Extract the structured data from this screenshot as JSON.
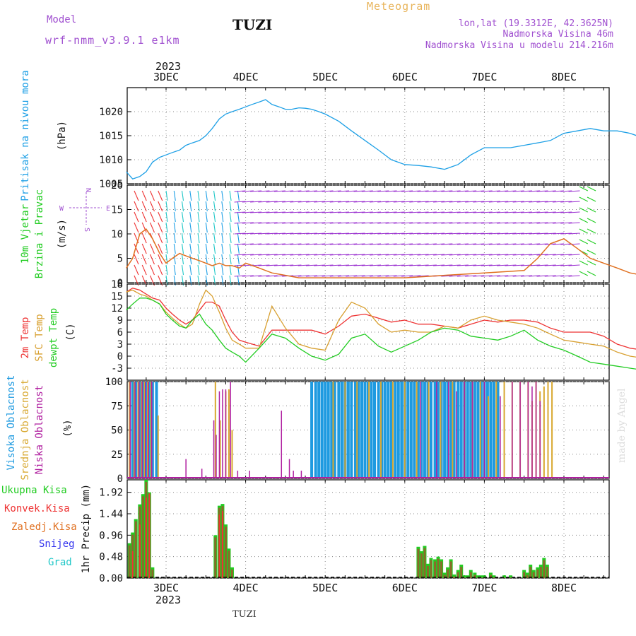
{
  "header": {
    "model_label": "Model",
    "model_value": "wrf-nmm_v3.9.1 e1km",
    "station": "TUZI",
    "product": "Meteogram",
    "lonlat": "lon,lat (19.3312E, 42.3625N)",
    "altitude": "Nadmorska Visina 46m",
    "model_altitude": "Nadmorska Visina u modelu 214.216m",
    "credit": "made by Angel",
    "footer_station": "TUZI"
  },
  "colors": {
    "purple": "#a050d0",
    "gold": "#e8b45a",
    "pressure": "#1ea0e6",
    "green": "#22cc22",
    "red": "#ee3333",
    "orange": "#e07020",
    "blue": "#3333ee",
    "cyan": "#22c8c8",
    "sfc": "#d8a030",
    "high_cloud": "#1e9ae0",
    "mid_cloud": "#d8a830",
    "low_cloud": "#b020a0",
    "precip_brown": "#8a6a2a"
  },
  "axis": {
    "year": "2023",
    "days": [
      "3DEC",
      "4DEC",
      "5DEC",
      "6DEC",
      "7DEC",
      "8DEC"
    ]
  },
  "chart_data": [
    {
      "type": "line",
      "panel": "pressure",
      "ylabel": "Pritisak na nivou mora",
      "unit": "(hPa)",
      "ylim": [
        1005,
        1025
      ],
      "yticks": [
        1005,
        1010,
        1015,
        1020
      ],
      "x_unit": "day offset from 3DEC 00UTC",
      "series": [
        {
          "x": [
            -0.5,
            -0.42,
            -0.33,
            -0.25,
            -0.17,
            -0.08,
            0,
            0.08,
            0.17,
            0.25,
            0.33,
            0.42,
            0.5,
            0.58,
            0.67,
            0.75,
            0.83,
            0.92,
            1,
            1.08,
            1.17,
            1.25,
            1.33,
            1.42,
            1.5,
            1.58,
            1.67,
            1.75,
            1.83,
            1.92,
            2,
            2.17,
            2.33,
            2.5,
            2.67,
            2.83,
            3,
            3.17,
            3.33,
            3.5,
            3.67,
            3.83,
            4,
            4.17,
            4.33,
            4.5,
            4.67,
            4.83,
            5,
            5.17,
            5.33,
            5.5,
            5.67,
            5.83,
            6,
            6.17,
            6.33,
            6.5
          ],
          "values": [
            1007.5,
            1006,
            1006.5,
            1007.5,
            1009.5,
            1010.5,
            1011,
            1011.5,
            1012,
            1013,
            1013.5,
            1014,
            1015,
            1016.5,
            1018.5,
            1019.5,
            1020,
            1020.5,
            1021,
            1021.5,
            1022,
            1022.5,
            1021.5,
            1021,
            1020.5,
            1020.5,
            1020.8,
            1020.7,
            1020.5,
            1020,
            1019.5,
            1018,
            1016,
            1014,
            1012,
            1010,
            1009,
            1008.8,
            1008.5,
            1008,
            1009,
            1011,
            1012.5,
            1012.5,
            1012.5,
            1013,
            1013.5,
            1014,
            1015.5,
            1016,
            1016.5,
            1016,
            1016,
            1015.5,
            1014.5,
            1014,
            1014.2,
            1014
          ]
        }
      ]
    },
    {
      "type": "line",
      "panel": "wind",
      "ylabel": "10m Vjetar Brzina i Pravac",
      "unit": "(m/s)",
      "ylim": [
        0,
        20
      ],
      "yticks": [
        0,
        5,
        10,
        15,
        20
      ],
      "compass": [
        "N",
        "E",
        "S",
        "W"
      ],
      "series": [
        {
          "name": "speed",
          "x": [
            -0.5,
            -0.42,
            -0.33,
            -0.25,
            -0.17,
            -0.08,
            0,
            0.08,
            0.17,
            0.25,
            0.33,
            0.42,
            0.5,
            0.58,
            0.67,
            0.75,
            0.83,
            0.92,
            1,
            1.17,
            1.33,
            1.5,
            1.67,
            1.83,
            2,
            2.5,
            3,
            3.5,
            4,
            4.5,
            4.67,
            4.83,
            5,
            5.17,
            5.33,
            5.5,
            5.67,
            5.83,
            6,
            6.25,
            6.5
          ],
          "values": [
            3,
            5,
            10,
            11,
            9,
            6,
            4,
            5,
            6,
            5.5,
            5,
            4.5,
            4,
            3.5,
            4,
            3.5,
            3.5,
            3,
            4,
            3,
            2,
            1.5,
            1,
            1,
            1,
            1,
            1,
            1.5,
            2,
            2.5,
            5,
            8,
            9,
            7,
            5,
            4,
            3,
            2,
            1.5,
            1,
            1
          ]
        }
      ]
    },
    {
      "type": "line",
      "panel": "temperature",
      "ylabels": [
        "2m Temp",
        "SFC Temp",
        "dewpt Temp"
      ],
      "unit": "(C)",
      "ylim": [
        -6,
        18
      ],
      "yticks": [
        -3,
        0,
        3,
        6,
        9,
        12,
        15,
        18
      ],
      "series": [
        {
          "name": "2m Temp",
          "x": [
            -0.5,
            -0.42,
            -0.33,
            -0.25,
            -0.17,
            -0.08,
            0,
            0.08,
            0.17,
            0.25,
            0.33,
            0.42,
            0.5,
            0.58,
            0.67,
            0.75,
            0.83,
            0.92,
            1,
            1.17,
            1.33,
            1.5,
            1.67,
            1.83,
            2,
            2.17,
            2.33,
            2.5,
            2.67,
            2.83,
            3,
            3.17,
            3.33,
            3.5,
            3.67,
            3.83,
            4,
            4.17,
            4.33,
            4.5,
            4.67,
            4.83,
            5,
            5.17,
            5.33,
            5.5,
            5.67,
            5.83,
            6,
            6.17,
            6.33,
            6.5
          ],
          "values": [
            16,
            17,
            16.5,
            15.5,
            14.5,
            14,
            12,
            10.5,
            9,
            8,
            9,
            11.5,
            13.5,
            13.5,
            12.5,
            9,
            6,
            4,
            3.5,
            2.5,
            6.5,
            6.5,
            6.5,
            6.5,
            5.5,
            7.5,
            10,
            10.5,
            9.5,
            8.5,
            9,
            8,
            8,
            7.5,
            7,
            8,
            9,
            8.5,
            9,
            9,
            8.5,
            7,
            6,
            6,
            6,
            5,
            3,
            2,
            1.5,
            3,
            6,
            8
          ]
        },
        {
          "name": "SFC Temp",
          "x": [
            -0.5,
            -0.42,
            -0.33,
            -0.25,
            -0.17,
            -0.08,
            0,
            0.08,
            0.17,
            0.25,
            0.33,
            0.42,
            0.5,
            0.58,
            0.67,
            0.75,
            0.83,
            0.92,
            1,
            1.17,
            1.33,
            1.5,
            1.67,
            1.83,
            2,
            2.17,
            2.33,
            2.5,
            2.67,
            2.83,
            3,
            3.17,
            3.33,
            3.5,
            3.67,
            3.83,
            4,
            4.17,
            4.33,
            4.5,
            4.67,
            4.83,
            5,
            5.17,
            5.33,
            5.5,
            5.67,
            5.83,
            6,
            6.17,
            6.33,
            6.5
          ],
          "values": [
            16,
            16.5,
            15.5,
            15,
            14,
            13,
            11,
            9.5,
            8,
            7,
            8,
            13,
            16.5,
            15,
            11,
            7,
            4,
            3,
            2,
            2,
            12.5,
            7,
            3,
            2,
            1.5,
            9,
            13.5,
            12,
            8,
            6,
            6.5,
            6,
            6,
            7.5,
            7,
            9,
            10,
            9,
            8.5,
            8,
            7,
            5.5,
            4,
            3.5,
            3,
            2.5,
            1,
            0,
            -0.5,
            1,
            8,
            11.5
          ]
        },
        {
          "name": "dewpt Temp",
          "x": [
            -0.5,
            -0.42,
            -0.33,
            -0.25,
            -0.17,
            -0.08,
            0,
            0.08,
            0.17,
            0.25,
            0.33,
            0.42,
            0.5,
            0.58,
            0.67,
            0.75,
            0.83,
            0.92,
            1,
            1.17,
            1.33,
            1.5,
            1.67,
            1.83,
            2,
            2.17,
            2.33,
            2.5,
            2.67,
            2.83,
            3,
            3.17,
            3.33,
            3.5,
            3.67,
            3.83,
            4,
            4.17,
            4.33,
            4.5,
            4.67,
            4.83,
            5,
            5.17,
            5.33,
            5.5,
            5.67,
            5.83,
            6,
            6.17,
            6.33,
            6.5
          ],
          "values": [
            11.5,
            13,
            14.5,
            14.5,
            14,
            13,
            10.5,
            9,
            7.5,
            7,
            9,
            10.5,
            8,
            6.5,
            4,
            2,
            1,
            0,
            -1.5,
            2,
            5.5,
            4.5,
            2,
            0,
            -1,
            0.5,
            4.5,
            5.5,
            2.5,
            1,
            2.5,
            4,
            6,
            7,
            6.5,
            5,
            4.5,
            4,
            5,
            6.5,
            4,
            2.5,
            1.5,
            0,
            -1.5,
            -2,
            -2.5,
            -3,
            -3.5,
            -1.5,
            0,
            0
          ]
        }
      ]
    },
    {
      "type": "bar",
      "panel": "cloud",
      "ylabels": [
        "Visoka Oblacnost",
        "Srednja Oblacnost",
        "Niska Oblacnost"
      ],
      "unit": "(%)",
      "ylim": [
        0,
        100
      ],
      "yticks": [
        0,
        25,
        50,
        75,
        100
      ],
      "series": [
        {
          "name": "Visoka Oblacnost",
          "x": [
            -0.42,
            -0.38,
            -0.33,
            -0.29,
            -0.25,
            -0.21,
            -0.17,
            -0.12,
            1.83,
            1.88,
            1.92,
            1.96,
            2,
            2.04,
            2.08,
            2.12,
            2.17,
            2.21,
            2.25,
            2.29,
            2.33,
            2.38,
            2.42,
            2.46,
            2.5,
            2.54,
            2.58,
            2.62,
            2.67,
            2.71,
            2.75,
            2.79,
            2.83,
            2.88,
            2.92,
            2.96,
            3,
            3.04,
            3.08,
            3.12,
            3.17,
            3.21,
            3.25,
            3.29,
            3.33,
            3.38,
            3.42,
            3.46,
            3.5,
            3.54,
            3.58,
            3.62,
            3.67,
            3.71,
            3.75,
            3.79,
            3.83,
            3.88,
            3.92,
            3.96,
            4,
            4.04,
            4.08,
            4.12,
            4.17
          ],
          "values": [
            100,
            100,
            100,
            100,
            100,
            100,
            100,
            100,
            100,
            100,
            100,
            100,
            100,
            100,
            100,
            100,
            100,
            100,
            100,
            100,
            100,
            100,
            100,
            100,
            100,
            100,
            100,
            100,
            100,
            100,
            100,
            100,
            100,
            100,
            100,
            100,
            100,
            100,
            100,
            100,
            100,
            100,
            100,
            100,
            100,
            100,
            100,
            100,
            100,
            100,
            100,
            100,
            100,
            100,
            100,
            100,
            100,
            100,
            100,
            100,
            100,
            100,
            100,
            100,
            100
          ]
        },
        {
          "name": "Srednja Oblacnost",
          "x": [
            -0.46,
            -0.4,
            -0.35,
            -0.31,
            -0.27,
            -0.23,
            -0.19,
            -0.1,
            0.62,
            0.68,
            0.75,
            0.79,
            0.83,
            2.1,
            2.25,
            2.4,
            2.55,
            2.7,
            2.85,
            3,
            3.15,
            3.3,
            3.45,
            3.6,
            3.75,
            3.85,
            3.95,
            4.05,
            4.15,
            4.25,
            4.35,
            4.45,
            4.55,
            4.6,
            4.65,
            4.7,
            4.75,
            4.8,
            4.85
          ],
          "values": [
            100,
            100,
            100,
            100,
            100,
            100,
            100,
            65,
            100,
            60,
            90,
            92,
            50,
            100,
            100,
            100,
            100,
            100,
            100,
            100,
            100,
            100,
            100,
            100,
            100,
            100,
            100,
            85,
            100,
            100,
            100,
            100,
            100,
            80,
            100,
            90,
            95,
            100,
            100
          ]
        },
        {
          "name": "Niska Oblacnost",
          "x": [
            -0.45,
            -0.39,
            -0.34,
            -0.3,
            -0.26,
            -0.22,
            -0.18,
            0.25,
            0.45,
            0.6,
            0.63,
            0.67,
            0.71,
            0.75,
            0.81,
            0.9,
            1.05,
            1.45,
            1.55,
            1.6,
            1.7,
            3.2,
            3.4,
            3.55,
            3.65,
            3.75,
            3.85,
            4,
            4.2,
            4.35,
            4.45,
            4.55,
            4.6,
            4.65,
            4.7,
            6.28,
            6.4,
            6.45
          ],
          "values": [
            100,
            100,
            100,
            100,
            100,
            100,
            100,
            20,
            10,
            60,
            45,
            90,
            92,
            92,
            100,
            8,
            8,
            70,
            20,
            8,
            8,
            100,
            100,
            100,
            90,
            100,
            100,
            100,
            85,
            100,
            100,
            100,
            95,
            100,
            80,
            10,
            10,
            10
          ]
        }
      ]
    },
    {
      "type": "bar",
      "panel": "precip",
      "ylabel": "1hr Precip",
      "unit": "(mm)",
      "ylim": [
        0,
        2.2
      ],
      "yticks": [
        0,
        0.48,
        0.96,
        1.44,
        1.92
      ],
      "legend": [
        "Ukupna Kisa",
        "Konvek.Kisa",
        "Zaledj.Kisa",
        "Snijeg",
        "Grad"
      ],
      "series": [
        {
          "name": "Ukupna Kisa",
          "x": [
            -0.46,
            -0.42,
            -0.38,
            -0.33,
            -0.29,
            -0.25,
            -0.21,
            -0.17,
            0.62,
            0.67,
            0.71,
            0.75,
            0.79,
            0.83,
            3.17,
            3.21,
            3.25,
            3.29,
            3.33,
            3.38,
            3.42,
            3.46,
            3.5,
            3.54,
            3.58,
            3.62,
            3.67,
            3.71,
            3.75,
            3.79,
            3.83,
            3.88,
            3.92,
            3.96,
            4,
            4.08,
            4.12,
            4.25,
            4.33,
            4.5,
            4.54,
            4.58,
            4.62,
            4.67,
            4.71,
            4.75,
            4.79
          ],
          "values": [
            0.78,
            1.02,
            1.32,
            1.65,
            1.88,
            2.2,
            1.92,
            0.24,
            0.96,
            1.62,
            1.66,
            1.2,
            0.66,
            0.24,
            0.7,
            0.6,
            0.72,
            0.32,
            0.45,
            0.42,
            0.48,
            0.42,
            0.12,
            0.24,
            0.42,
            0.08,
            0.18,
            0.3,
            0.06,
            0.06,
            0.18,
            0.12,
            0.06,
            0.06,
            0.06,
            0.12,
            0.06,
            0.06,
            0.06,
            0.18,
            0.12,
            0.3,
            0.18,
            0.24,
            0.3,
            0.45,
            0.3
          ]
        },
        {
          "name": "Konvek.Kisa",
          "x": [
            -0.42,
            -0.33,
            -0.25,
            -0.21,
            0.67,
            0.71
          ],
          "values": [
            0.6,
            1.2,
            1.8,
            1.9,
            1.42,
            1.5
          ]
        },
        {
          "name": "Snijeg",
          "x": [],
          "values": []
        },
        {
          "name": "Grad",
          "x": [],
          "values": []
        }
      ]
    }
  ]
}
